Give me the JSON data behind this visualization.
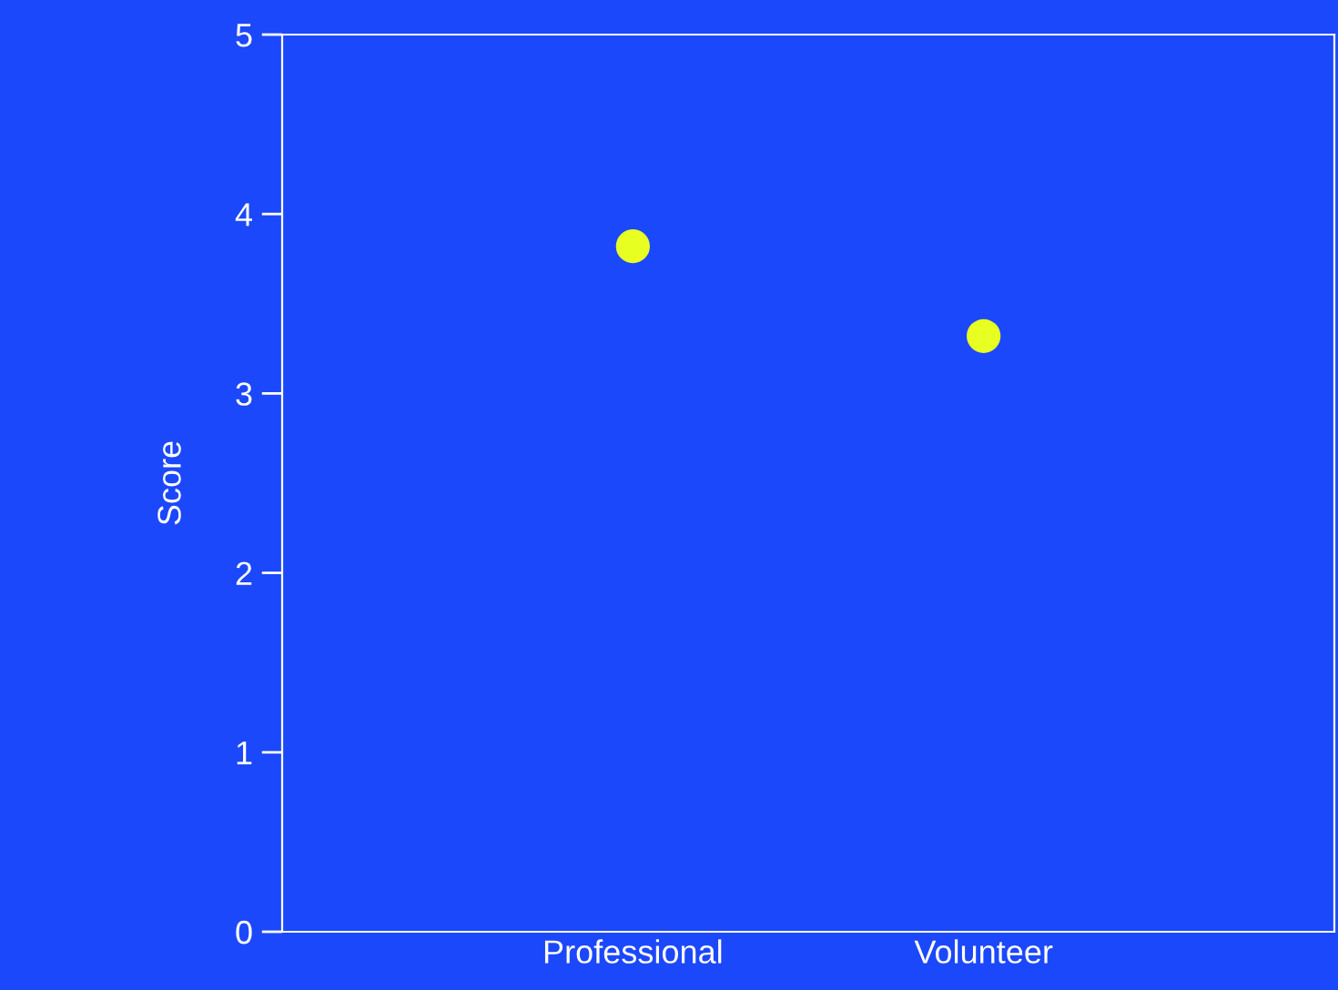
{
  "chart_data": {
    "type": "scatter",
    "ylabel": "Score",
    "categories": [
      "Professional",
      "Volunteer"
    ],
    "series": [
      {
        "color": "#e8ff22",
        "values": [
          3.82,
          3.32
        ]
      }
    ],
    "ylim": [
      0,
      5
    ],
    "yticks": [
      0,
      1,
      2,
      3,
      4,
      5
    ],
    "grid": false,
    "marker": "circle"
  }
}
